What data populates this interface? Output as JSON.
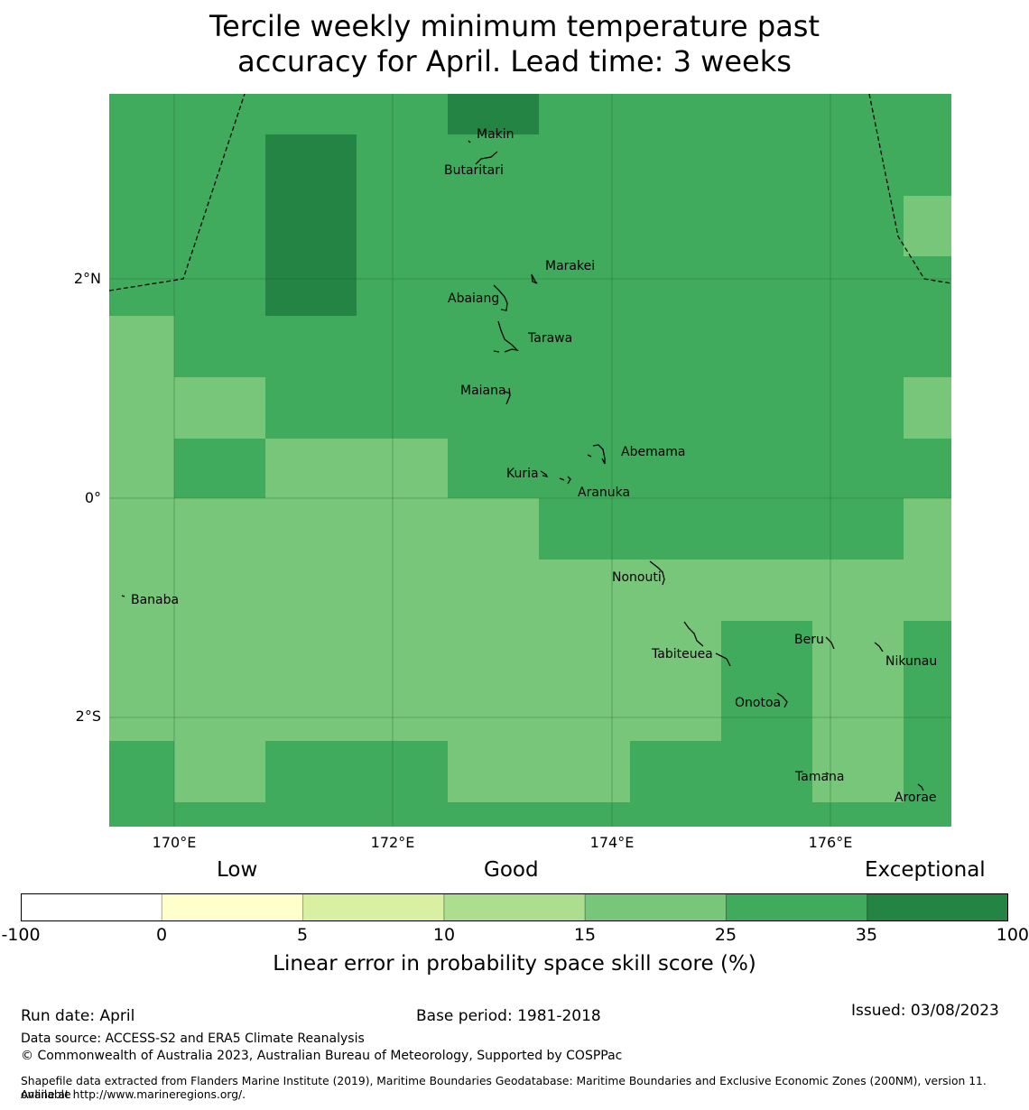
{
  "title_line1": "Tercile weekly minimum temperature past",
  "title_line2": "accuracy for April. Lead time: 3 weeks",
  "map": {
    "lat_labels": [
      "2°N",
      "0°",
      "2°S"
    ],
    "lon_labels": [
      "170°E",
      "172°E",
      "174°E",
      "176°E"
    ],
    "colors": {
      "bin_15_25": "#78c679",
      "bin_25_35": "#41ab5d",
      "bin_35_100": "#238443"
    },
    "places": [
      {
        "name": "Makin"
      },
      {
        "name": "Butaritari"
      },
      {
        "name": "Marakei"
      },
      {
        "name": "Abaiang"
      },
      {
        "name": "Tarawa"
      },
      {
        "name": "Maiana"
      },
      {
        "name": "Abemama"
      },
      {
        "name": "Kuria"
      },
      {
        "name": "Aranuka"
      },
      {
        "name": "Nonouti"
      },
      {
        "name": "Banaba"
      },
      {
        "name": "Beru"
      },
      {
        "name": "Tabiteuea"
      },
      {
        "name": "Nikunau"
      },
      {
        "name": "Onotoa"
      },
      {
        "name": "Tamana"
      },
      {
        "name": "Arorae"
      }
    ]
  },
  "colorbar": {
    "category_low": "Low",
    "category_good": "Good",
    "category_exceptional": "Exceptional",
    "ticks": [
      "-100",
      "0",
      "5",
      "10",
      "15",
      "25",
      "35",
      "100"
    ],
    "colors": [
      "#ffffff",
      "#ffffcc",
      "#d9f0a3",
      "#addd8e",
      "#78c679",
      "#41ab5d",
      "#238443"
    ],
    "label": "Linear error in probability space skill score (%)"
  },
  "footer": {
    "run_date": "Run date: April",
    "base_period": "Base period: 1981-2018",
    "issued": "Issued: 03/08/2023",
    "data_source": "Data source: ACCESS-S2 and ERA5 Climate Reanalysis",
    "copyright": "© Commonwealth of Australia 2023, Australian Bureau of Meteorology, Supported by COSPPac",
    "shapefile_line1": "Shapefile data extracted from Flanders Marine Institute (2019), Maritime Boundaries Geodatabase: Maritime Boundaries and Exclusive Economic Zones (200NM), version 11. Available",
    "shapefile_line2": "online at http://www.marineregions.org/."
  }
}
